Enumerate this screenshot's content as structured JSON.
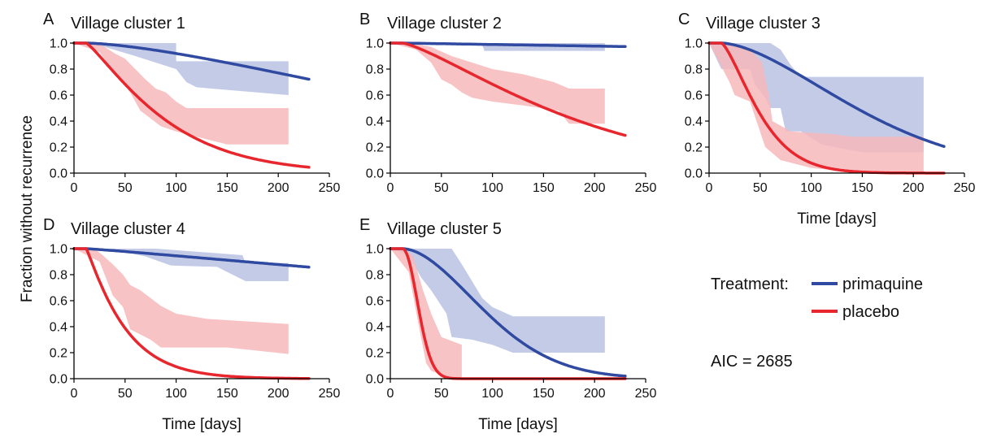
{
  "figure": {
    "ylabel": "Fraction without recurrence",
    "legend": {
      "title": "Treatment:",
      "items": [
        {
          "label": "primaquine",
          "color": "#2f4aa0"
        },
        {
          "label": "placebo",
          "color": "#e8262d"
        }
      ]
    },
    "aic_text": "AIC = 2685",
    "colors": {
      "primaquine_line": "#2f4aa0",
      "primaquine_band": "#b9c2e3",
      "placebo_line": "#e8262d",
      "placebo_band": "#f7b8bb"
    }
  },
  "chart_data": [
    {
      "type": "line",
      "letter": "A",
      "title": "Village cluster 1",
      "xlabel": "",
      "xlim": [
        0,
        250
      ],
      "ylim": [
        0,
        1
      ],
      "xticks": [
        0,
        50,
        100,
        150,
        200,
        250
      ],
      "yticks": [
        0.0,
        0.2,
        0.4,
        0.6,
        0.8,
        1.0
      ],
      "series": [
        {
          "name": "primaquine",
          "model": {
            "a": 460,
            "b": 1.5,
            "t0": 12
          },
          "x_end": 230,
          "band_upper": [
            [
              0,
              1
            ],
            [
              30,
              1
            ],
            [
              100,
              1
            ],
            [
              100,
              0.86
            ],
            [
              210,
              0.86
            ]
          ],
          "band_lower": [
            [
              0,
              1
            ],
            [
              30,
              0.97
            ],
            [
              60,
              0.9
            ],
            [
              100,
              0.8
            ],
            [
              110,
              0.7
            ],
            [
              120,
              0.66
            ],
            [
              210,
              0.6
            ]
          ]
        },
        {
          "name": "placebo",
          "model": {
            "a": 85,
            "b": 1.2,
            "t0": 12
          },
          "x_end": 230,
          "band_upper": [
            [
              0,
              1
            ],
            [
              20,
              1
            ],
            [
              30,
              0.97
            ],
            [
              40,
              0.92
            ],
            [
              50,
              0.88
            ],
            [
              60,
              0.8
            ],
            [
              70,
              0.72
            ],
            [
              80,
              0.65
            ],
            [
              90,
              0.62
            ],
            [
              100,
              0.55
            ],
            [
              110,
              0.5
            ],
            [
              210,
              0.5
            ]
          ],
          "band_lower": [
            [
              0,
              1
            ],
            [
              25,
              0.93
            ],
            [
              35,
              0.82
            ],
            [
              45,
              0.72
            ],
            [
              55,
              0.62
            ],
            [
              65,
              0.48
            ],
            [
              75,
              0.42
            ],
            [
              85,
              0.36
            ],
            [
              100,
              0.32
            ],
            [
              120,
              0.28
            ],
            [
              150,
              0.22
            ],
            [
              210,
              0.22
            ]
          ]
        }
      ]
    },
    {
      "type": "line",
      "letter": "B",
      "title": "Village cluster 2",
      "xlabel": "",
      "xlim": [
        0,
        250
      ],
      "ylim": [
        0,
        1
      ],
      "xticks": [
        0,
        50,
        100,
        150,
        200,
        250
      ],
      "yticks": [
        0.0,
        0.2,
        0.4,
        0.6,
        0.8,
        1.0
      ],
      "series": [
        {
          "name": "primaquine",
          "model": {
            "a": 8000,
            "b": 1.0,
            "t0": 12
          },
          "x_end": 230,
          "band_upper": [
            [
              0,
              1
            ],
            [
              210,
              1
            ]
          ],
          "band_lower": [
            [
              0,
              1
            ],
            [
              90,
              0.99
            ],
            [
              92,
              0.94
            ],
            [
              210,
              0.94
            ]
          ]
        },
        {
          "name": "placebo",
          "model": {
            "a": 185,
            "b": 1.3,
            "t0": 12
          },
          "x_end": 230,
          "band_upper": [
            [
              0,
              1
            ],
            [
              20,
              1
            ],
            [
              40,
              0.97
            ],
            [
              60,
              0.9
            ],
            [
              80,
              0.85
            ],
            [
              100,
              0.8
            ],
            [
              130,
              0.76
            ],
            [
              160,
              0.7
            ],
            [
              175,
              0.65
            ],
            [
              210,
              0.65
            ]
          ],
          "band_lower": [
            [
              0,
              1
            ],
            [
              25,
              0.95
            ],
            [
              40,
              0.85
            ],
            [
              50,
              0.72
            ],
            [
              60,
              0.68
            ],
            [
              70,
              0.62
            ],
            [
              80,
              0.58
            ],
            [
              100,
              0.55
            ],
            [
              130,
              0.52
            ],
            [
              165,
              0.48
            ],
            [
              175,
              0.38
            ],
            [
              210,
              0.38
            ]
          ]
        }
      ]
    },
    {
      "type": "line",
      "letter": "C",
      "title": "Village cluster 3",
      "xlabel": "Time [days]",
      "xlim": [
        0,
        250
      ],
      "ylim": [
        0,
        1
      ],
      "xticks": [
        0,
        50,
        100,
        150,
        200,
        250
      ],
      "yticks": [
        0.0,
        0.2,
        0.4,
        0.6,
        0.8,
        1.0
      ],
      "series": [
        {
          "name": "primaquine",
          "model": {
            "a": 165,
            "b": 1.65,
            "t0": 12
          },
          "x_end": 230,
          "band_upper": [
            [
              0,
              1
            ],
            [
              60,
              1
            ],
            [
              70,
              0.95
            ],
            [
              80,
              0.83
            ],
            [
              90,
              0.74
            ],
            [
              210,
              0.74
            ]
          ],
          "band_lower": [
            [
              0,
              1
            ],
            [
              12,
              0.8
            ],
            [
              40,
              0.8
            ],
            [
              45,
              0.68
            ],
            [
              55,
              0.58
            ],
            [
              60,
              0.5
            ],
            [
              70,
              0.5
            ],
            [
              75,
              0.32
            ],
            [
              90,
              0.32
            ],
            [
              110,
              0.22
            ],
            [
              150,
              0.16
            ],
            [
              210,
              0.16
            ]
          ]
        },
        {
          "name": "placebo",
          "model": {
            "a": 45,
            "b": 1.4,
            "t0": 12
          },
          "x_end": 230,
          "band_upper": [
            [
              0,
              1
            ],
            [
              20,
              1
            ],
            [
              40,
              0.95
            ],
            [
              52,
              0.85
            ],
            [
              58,
              0.62
            ],
            [
              62,
              0.4
            ],
            [
              80,
              0.32
            ],
            [
              120,
              0.3
            ],
            [
              140,
              0.28
            ],
            [
              210,
              0.28
            ]
          ],
          "band_lower": [
            [
              0,
              1
            ],
            [
              20,
              0.7
            ],
            [
              25,
              0.6
            ],
            [
              40,
              0.55
            ],
            [
              55,
              0.2
            ],
            [
              70,
              0.1
            ],
            [
              100,
              0.04
            ],
            [
              150,
              0.0
            ],
            [
              210,
              0.0
            ]
          ]
        }
      ]
    },
    {
      "type": "line",
      "letter": "D",
      "title": "Village cluster 4",
      "xlabel": "Time [days]",
      "xlim": [
        0,
        250
      ],
      "ylim": [
        0,
        1
      ],
      "xticks": [
        0,
        50,
        100,
        150,
        200,
        250
      ],
      "yticks": [
        0.0,
        0.2,
        0.4,
        0.6,
        0.8,
        1.0
      ],
      "series": [
        {
          "name": "primaquine",
          "model": {
            "a": 1200,
            "b": 1.1,
            "t0": 12
          },
          "x_end": 230,
          "band_upper": [
            [
              0,
              1
            ],
            [
              80,
              1
            ],
            [
              165,
              0.95
            ],
            [
              168,
              0.89
            ],
            [
              210,
              0.89
            ]
          ],
          "band_lower": [
            [
              0,
              1
            ],
            [
              40,
              0.99
            ],
            [
              70,
              0.94
            ],
            [
              95,
              0.87
            ],
            [
              140,
              0.86
            ],
            [
              168,
              0.75
            ],
            [
              210,
              0.75
            ]
          ]
        },
        {
          "name": "placebo",
          "model": {
            "a": 40,
            "b": 1.1,
            "t0": 12
          },
          "x_end": 230,
          "band_upper": [
            [
              0,
              1
            ],
            [
              20,
              1
            ],
            [
              28,
              0.95
            ],
            [
              38,
              0.88
            ],
            [
              48,
              0.8
            ],
            [
              55,
              0.72
            ],
            [
              65,
              0.68
            ],
            [
              75,
              0.62
            ],
            [
              85,
              0.56
            ],
            [
              100,
              0.5
            ],
            [
              130,
              0.46
            ],
            [
              210,
              0.42
            ]
          ],
          "band_lower": [
            [
              0,
              1
            ],
            [
              25,
              0.9
            ],
            [
              30,
              0.8
            ],
            [
              38,
              0.64
            ],
            [
              48,
              0.55
            ],
            [
              55,
              0.38
            ],
            [
              65,
              0.34
            ],
            [
              75,
              0.3
            ],
            [
              85,
              0.24
            ],
            [
              150,
              0.24
            ],
            [
              210,
              0.19
            ]
          ]
        }
      ]
    },
    {
      "type": "line",
      "letter": "E",
      "title": "Village cluster 5",
      "xlabel": "Time [days]",
      "xlim": [
        0,
        250
      ],
      "ylim": [
        0,
        1
      ],
      "xticks": [
        0,
        50,
        100,
        150,
        200,
        250
      ],
      "yticks": [
        0.0,
        0.2,
        0.4,
        0.6,
        0.8,
        1.0
      ],
      "series": [
        {
          "name": "primaquine",
          "model": {
            "a": 102,
            "b": 1.8,
            "t0": 12
          },
          "x_end": 230,
          "band_upper": [
            [
              0,
              1
            ],
            [
              60,
              1
            ],
            [
              70,
              0.88
            ],
            [
              80,
              0.75
            ],
            [
              90,
              0.62
            ],
            [
              100,
              0.55
            ],
            [
              120,
              0.48
            ],
            [
              150,
              0.48
            ],
            [
              210,
              0.48
            ]
          ],
          "band_lower": [
            [
              0,
              1
            ],
            [
              18,
              0.95
            ],
            [
              30,
              0.78
            ],
            [
              40,
              0.68
            ],
            [
              55,
              0.5
            ],
            [
              60,
              0.32
            ],
            [
              80,
              0.3
            ],
            [
              100,
              0.26
            ],
            [
              120,
              0.2
            ],
            [
              150,
              0.2
            ],
            [
              210,
              0.2
            ]
          ]
        },
        {
          "name": "placebo",
          "model": {
            "a": 20,
            "b": 2.0,
            "t0": 12
          },
          "x_end": 230,
          "band_upper": [
            [
              0,
              1
            ],
            [
              12,
              1
            ],
            [
              22,
              0.95
            ],
            [
              32,
              0.68
            ],
            [
              40,
              0.5
            ],
            [
              50,
              0.32
            ],
            [
              70,
              0.26
            ],
            [
              70,
              0
            ],
            [
              210,
              0
            ]
          ],
          "band_lower": [
            [
              0,
              1
            ],
            [
              18,
              0.82
            ],
            [
              28,
              0.4
            ],
            [
              35,
              0.12
            ],
            [
              40,
              0.06
            ],
            [
              60,
              0.0
            ],
            [
              210,
              0.0
            ]
          ]
        }
      ]
    }
  ]
}
